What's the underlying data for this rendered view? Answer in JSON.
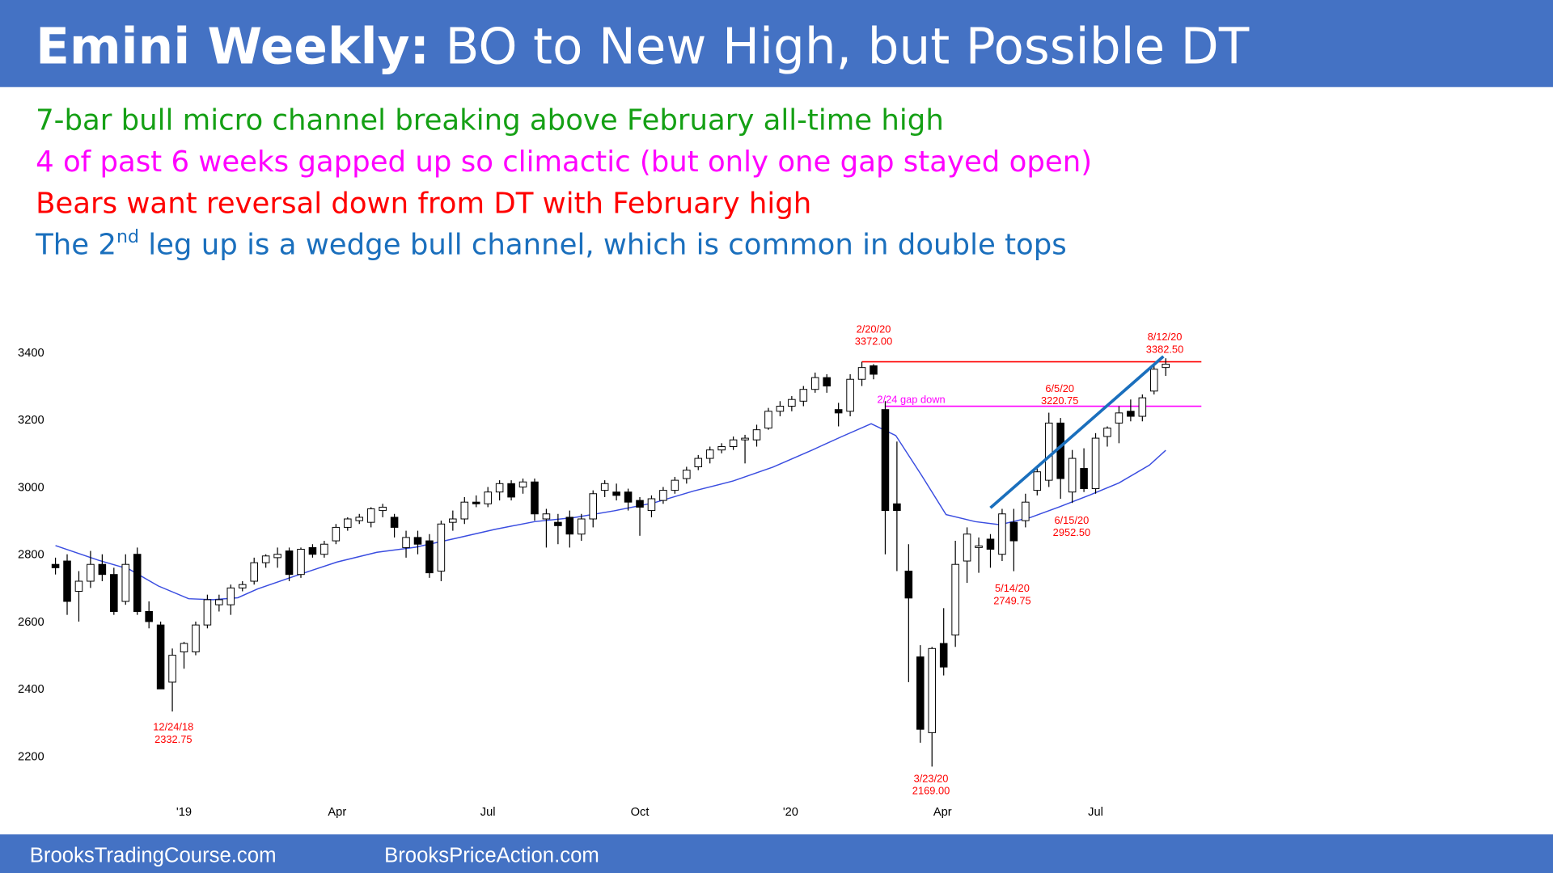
{
  "header": {
    "title_bold": "Emini Weekly:",
    "title_rest": " BO to New High, but Possible DT"
  },
  "notes": [
    {
      "color": "#15a015",
      "parts": [
        "7-bar bull micro channel breaking above February all-time high"
      ]
    },
    {
      "color": "#ff00ff",
      "parts": [
        "4 of past 6 weeks gapped up so climactic (but only one gap stayed open)"
      ]
    },
    {
      "color": "#ff0000",
      "parts": [
        "Bears want reversal down from DT with February high"
      ]
    },
    {
      "color": "#1a6fbd",
      "parts": [
        "The 2",
        "nd",
        " leg up is a wedge bull channel, which is common in double tops"
      ]
    }
  ],
  "chart_data": {
    "type": "candlestick",
    "ylim": [
      2100,
      3500
    ],
    "yticks": [
      2200,
      2400,
      2600,
      2800,
      3000,
      3200,
      3400
    ],
    "xticks": [
      {
        "value": 11,
        "label": "'19"
      },
      {
        "value": 24.1,
        "label": "Apr"
      },
      {
        "value": 37,
        "label": "Jul"
      },
      {
        "value": 50,
        "label": "Oct"
      },
      {
        "value": 62.9,
        "label": "'20"
      },
      {
        "value": 75.9,
        "label": "Apr"
      },
      {
        "value": 89,
        "label": "Jul"
      }
    ],
    "candles": {
      "open": [
        2770,
        2780,
        2690,
        2720,
        2770,
        2740,
        2660,
        2800,
        2630,
        2590,
        2420,
        2510,
        2510,
        2590,
        2650,
        2650,
        2700,
        2720,
        2775,
        2790,
        2810,
        2740,
        2820,
        2800,
        2840,
        2880,
        2900,
        2895,
        2930,
        2910,
        2820,
        2850,
        2840,
        2750,
        2895,
        2905,
        2955,
        2950,
        2985,
        3010,
        3000,
        3015,
        2905,
        2895,
        2910,
        2860,
        2905,
        2990,
        2985,
        2985,
        2960,
        2930,
        2960,
        2990,
        3025,
        3060,
        3085,
        3110,
        3120,
        3140,
        3140,
        3175,
        3225,
        3240,
        3255,
        3290,
        3325,
        3230,
        3225,
        3320,
        3360,
        3230,
        2950,
        2750,
        2495,
        2270,
        2535,
        2560,
        2780,
        2820,
        2845,
        2800,
        2895,
        2900,
        2990,
        3020,
        3190,
        2985,
        3055,
        2995,
        3150,
        3190,
        3225,
        3210,
        3285,
        3355
      ],
      "high": [
        2790,
        2800,
        2750,
        2810,
        2800,
        2760,
        2800,
        2820,
        2660,
        2600,
        2520,
        2540,
        2600,
        2680,
        2680,
        2710,
        2720,
        2790,
        2800,
        2820,
        2820,
        2820,
        2830,
        2840,
        2890,
        2910,
        2920,
        2940,
        2950,
        2920,
        2870,
        2870,
        2860,
        2900,
        2930,
        2970,
        2975,
        3000,
        3020,
        3020,
        3025,
        3025,
        2935,
        2920,
        2930,
        2920,
        2990,
        3020,
        3010,
        2995,
        2970,
        2975,
        3000,
        3030,
        3060,
        3095,
        3120,
        3130,
        3150,
        3155,
        3185,
        3235,
        3255,
        3270,
        3300,
        3340,
        3335,
        3250,
        3335,
        3372,
        3365,
        3255,
        3135,
        2830,
        2530,
        2525,
        2640,
        2840,
        2880,
        2850,
        2860,
        2935,
        2935,
        2980,
        3060,
        3220.75,
        3205,
        3110,
        3115,
        3160,
        3180,
        3240,
        3260,
        3275,
        3360,
        3382.5
      ],
      "low": [
        2740,
        2620,
        2600,
        2700,
        2720,
        2620,
        2650,
        2620,
        2580,
        2400,
        2332.75,
        2460,
        2500,
        2580,
        2630,
        2620,
        2690,
        2710,
        2760,
        2760,
        2720,
        2730,
        2790,
        2790,
        2830,
        2870,
        2890,
        2880,
        2910,
        2850,
        2790,
        2800,
        2730,
        2720,
        2870,
        2890,
        2940,
        2940,
        2960,
        2960,
        2980,
        2900,
        2820,
        2830,
        2820,
        2840,
        2880,
        2970,
        2960,
        2930,
        2855,
        2910,
        2950,
        2980,
        3010,
        3050,
        3070,
        3100,
        3110,
        3070,
        3120,
        3170,
        3210,
        3225,
        3240,
        3280,
        3280,
        3180,
        3210,
        3300,
        3320,
        2800,
        2750,
        2420,
        2240,
        2169,
        2440,
        2525,
        2715,
        2745,
        2760,
        2780,
        2749.75,
        2880,
        2975,
        3000,
        2965,
        2952.5,
        2985,
        2980,
        3120,
        3130,
        3195,
        3195,
        3275,
        3330
      ],
      "close": [
        2760,
        2660,
        2720,
        2770,
        2740,
        2630,
        2770,
        2630,
        2600,
        2400,
        2500,
        2535,
        2590,
        2665,
        2665,
        2700,
        2710,
        2775,
        2795,
        2800,
        2740,
        2815,
        2800,
        2830,
        2880,
        2905,
        2910,
        2935,
        2940,
        2880,
        2850,
        2830,
        2745,
        2890,
        2905,
        2955,
        2950,
        2985,
        3010,
        2970,
        3015,
        2920,
        2920,
        2885,
        2860,
        2905,
        2980,
        3010,
        2975,
        2955,
        2940,
        2965,
        2990,
        3020,
        3050,
        3085,
        3110,
        3120,
        3140,
        3145,
        3170,
        3225,
        3240,
        3260,
        3290,
        3325,
        3300,
        3220,
        3320,
        3355,
        3335,
        2930,
        2930,
        2670,
        2280,
        2520,
        2465,
        2770,
        2860,
        2825,
        2815,
        2920,
        2840,
        2955,
        3045,
        3190,
        3025,
        3085,
        2995,
        3145,
        3175,
        3220,
        3210,
        3265,
        3350,
        3365
      ]
    },
    "ma": {
      "color": "#3a4de0",
      "x": [
        0,
        3.7,
        6.3,
        8.8,
        11.4,
        13.5,
        15.6,
        17.3,
        20.7,
        24.1,
        27.5,
        30.8,
        34.2,
        37.6,
        41,
        44.4,
        47.8,
        51.2,
        54.6,
        58,
        61.4,
        64.7,
        67.3,
        69.8,
        71.9,
        74.1,
        76.2,
        78.7,
        80.8,
        83.4,
        85.9,
        88.5,
        91,
        93.6,
        95
      ],
      "values": [
        2826,
        2782,
        2756,
        2706,
        2668,
        2665,
        2671,
        2697,
        2738,
        2777,
        2806,
        2821,
        2847,
        2874,
        2897,
        2909,
        2929,
        2953,
        2988,
        3018,
        3059,
        3109,
        3150,
        3188,
        3153,
        3035,
        2918,
        2897,
        2888,
        2909,
        2941,
        2976,
        3012,
        3065,
        3109
      ]
    },
    "levels": [
      {
        "value": 3372,
        "color": "#ff0000",
        "from": 69
      },
      {
        "value": 3240,
        "color": "#ff00ff",
        "from": 71
      }
    ],
    "trendline": {
      "color": "#1a6fbd",
      "x": [
        80,
        94.8
      ],
      "values": [
        2938,
        3388
      ]
    },
    "annotations": [
      {
        "color": "#ff0000",
        "lines": [
          "2/20/20",
          "3372.00"
        ]
      },
      {
        "color": "#ff0000",
        "lines": [
          "8/12/20",
          "3382.50"
        ]
      },
      {
        "color": "#ff0000",
        "lines": [
          "6/5/20",
          "3220.75"
        ]
      },
      {
        "color": "#ff00ff",
        "lines": [
          "2/24 gap down"
        ]
      },
      {
        "color": "#ff0000",
        "lines": [
          "6/15/20",
          "2952.50"
        ]
      },
      {
        "color": "#ff0000",
        "lines": [
          "5/14/20",
          "2749.75"
        ]
      },
      {
        "color": "#ff0000",
        "lines": [
          "12/24/18",
          "2332.75"
        ]
      },
      {
        "color": "#ff0000",
        "lines": [
          "3/23/20",
          "2169.00"
        ]
      }
    ]
  },
  "footer": {
    "left": "BrooksTradingCourse.com",
    "right": "BrooksPriceAction.com"
  }
}
